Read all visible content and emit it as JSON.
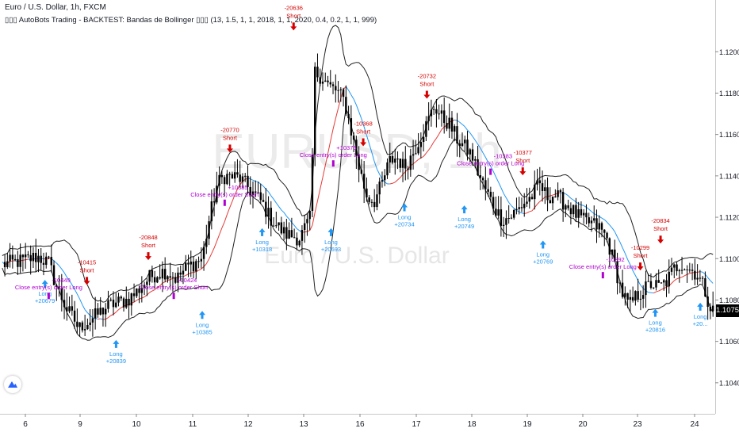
{
  "header": {
    "symbol_title": "Euro / U.S. Dollar, 1h, FXCM",
    "indicator_title": "▯▯▯ AutoBots Trading - BACKTEST: Bandas de Bollinger ▯▯▯ (13, 1.5, 1, 1, 2018, 1, 1, 2020, 0.4, 0.2, 1, 1, 999)"
  },
  "watermark": {
    "symbol": "EURUSD, 1h",
    "name": "Euro / U.S. Dollar"
  },
  "last_price": "1.10750",
  "colors": {
    "long": "#2196f3",
    "short": "#d50000",
    "close": "#b000d0",
    "basis_up": "#e53935",
    "basis_down": "#2196f3",
    "band": "#222222",
    "candle": "#000000"
  },
  "icons": {
    "logo": "tradingview-logo-icon"
  },
  "chart_data": {
    "type": "candlestick",
    "title": "Euro / U.S. Dollar, 1h, FXCM",
    "x_ticks": [
      "6",
      "9",
      "10",
      "11",
      "12",
      "13",
      "16",
      "17",
      "18",
      "19",
      "20",
      "23",
      "24"
    ],
    "y_ticks": [
      "1.12000",
      "1.11800",
      "1.11600",
      "1.11400",
      "1.11200",
      "1.11000",
      "1.10800",
      "1.10600",
      "1.10400"
    ],
    "ylim": [
      1.1025,
      1.1225
    ],
    "grid": false,
    "price_path": [
      [
        0,
        1.1097
      ],
      [
        3,
        1.1099
      ],
      [
        5,
        1.1101
      ],
      [
        6.5,
        1.1098
      ],
      [
        7.5,
        1.1087
      ],
      [
        9,
        1.1075
      ],
      [
        10,
        1.107
      ],
      [
        10.5,
        1.1066
      ],
      [
        11,
        1.1068
      ],
      [
        12,
        1.107
      ],
      [
        13,
        1.1073
      ],
      [
        14,
        1.1076
      ],
      [
        15,
        1.1078
      ],
      [
        16,
        1.1079
      ],
      [
        17,
        1.108
      ],
      [
        18,
        1.1083
      ],
      [
        19,
        1.1087
      ],
      [
        20,
        1.1091
      ],
      [
        21,
        1.1093
      ],
      [
        22,
        1.1094
      ],
      [
        23,
        1.1092
      ],
      [
        23.6,
        1.109
      ],
      [
        24,
        1.1092
      ],
      [
        25,
        1.1096
      ],
      [
        27,
        1.11
      ],
      [
        28,
        1.112
      ],
      [
        29,
        1.1136
      ],
      [
        30,
        1.114
      ],
      [
        32,
        1.1139
      ],
      [
        34,
        1.1131
      ],
      [
        35,
        1.1127
      ],
      [
        36,
        1.112
      ],
      [
        38,
        1.1112
      ],
      [
        40,
        1.111
      ],
      [
        41.5,
        1.112
      ],
      [
        42,
        1.119
      ],
      [
        43,
        1.1188
      ],
      [
        44,
        1.1183
      ],
      [
        45,
        1.1181
      ],
      [
        46,
        1.1176
      ],
      [
        47,
        1.116
      ],
      [
        48,
        1.1143
      ],
      [
        49,
        1.113
      ],
      [
        50,
        1.1128
      ],
      [
        51,
        1.1136
      ],
      [
        52,
        1.1147
      ],
      [
        53,
        1.1149
      ],
      [
        54,
        1.1144
      ],
      [
        55,
        1.115
      ],
      [
        56,
        1.1158
      ],
      [
        57,
        1.1165
      ],
      [
        58,
        1.1174
      ],
      [
        59,
        1.1168
      ],
      [
        60,
        1.1165
      ],
      [
        61,
        1.1158
      ],
      [
        62,
        1.1154
      ],
      [
        63,
        1.115
      ],
      [
        64,
        1.114
      ],
      [
        65,
        1.1132
      ],
      [
        66,
        1.1125
      ],
      [
        67,
        1.1119
      ],
      [
        68,
        1.112
      ],
      [
        69,
        1.1123
      ],
      [
        70,
        1.1127
      ],
      [
        71,
        1.113
      ],
      [
        72,
        1.1136
      ],
      [
        73,
        1.113
      ],
      [
        74,
        1.1131
      ],
      [
        75,
        1.1128
      ],
      [
        76,
        1.1125
      ],
      [
        77,
        1.1121
      ],
      [
        78,
        1.1118
      ],
      [
        79,
        1.1117
      ],
      [
        80,
        1.1115
      ],
      [
        81,
        1.111
      ],
      [
        82,
        1.1098
      ],
      [
        83,
        1.1084
      ],
      [
        84,
        1.1077
      ],
      [
        85,
        1.1082
      ],
      [
        86,
        1.1085
      ],
      [
        87,
        1.1088
      ],
      [
        88,
        1.1086
      ],
      [
        89,
        1.1089
      ],
      [
        90,
        1.1095
      ],
      [
        91,
        1.1098
      ],
      [
        92,
        1.1095
      ],
      [
        93,
        1.1093
      ],
      [
        94,
        1.1086
      ],
      [
        95,
        1.1075
      ]
    ],
    "marker_label_map": {
      "long": "Long",
      "short": "Short"
    },
    "signals": [
      {
        "type": "long",
        "x": 6.0,
        "y": 1.1092,
        "value": "+20679"
      },
      {
        "type": "close",
        "x": 6.5,
        "y": 1.1082,
        "value": "-10449",
        "text": "Close entry(s) order Long"
      },
      {
        "type": "short",
        "x": 11.6,
        "y": 1.1085,
        "value": "-10415"
      },
      {
        "type": "long",
        "x": 15.5,
        "y": 1.1063,
        "value": "+20839"
      },
      {
        "type": "short",
        "x": 19.8,
        "y": 1.1097,
        "value": "-20848"
      },
      {
        "type": "close",
        "x": 23.2,
        "y": 1.1082,
        "value": "+10424",
        "text": "Close entry(s) order Short"
      },
      {
        "type": "long",
        "x": 27.0,
        "y": 1.1077,
        "value": "+10385"
      },
      {
        "type": "short",
        "x": 30.7,
        "y": 1.1149,
        "value": "-20770"
      },
      {
        "type": "close",
        "x": 30.0,
        "y": 1.1127,
        "value": "+10385",
        "text": "Close entry(s) order Short"
      },
      {
        "type": "long",
        "x": 35.0,
        "y": 1.1117,
        "value": "+10318"
      },
      {
        "type": "short",
        "x": 39.2,
        "y": 1.1208,
        "value": "-20636"
      },
      {
        "type": "long",
        "x": 44.2,
        "y": 1.1117,
        "value": "+20693"
      },
      {
        "type": "close",
        "x": 44.5,
        "y": 1.1146,
        "value": "+10375",
        "text": "Close entry(s) order Long"
      },
      {
        "type": "short",
        "x": 48.5,
        "y": 1.1152,
        "value": "-10368"
      },
      {
        "type": "long",
        "x": 54.0,
        "y": 1.1129,
        "value": "+20734"
      },
      {
        "type": "short",
        "x": 57.0,
        "y": 1.1175,
        "value": "-20732"
      },
      {
        "type": "long",
        "x": 62.0,
        "y": 1.1128,
        "value": "+20749"
      },
      {
        "type": "close",
        "x": 65.5,
        "y": 1.1142,
        "value": "-10383",
        "text": "Close entry(s) order Long"
      },
      {
        "type": "short",
        "x": 69.8,
        "y": 1.1138,
        "value": "-10377"
      },
      {
        "type": "long",
        "x": 72.5,
        "y": 1.1111,
        "value": "+20769"
      },
      {
        "type": "close",
        "x": 80.5,
        "y": 1.1092,
        "value": "-10392",
        "text": "Close entry(s) order Long"
      },
      {
        "type": "short",
        "x": 85.5,
        "y": 1.1092,
        "value": "-10299"
      },
      {
        "type": "short",
        "x": 88.2,
        "y": 1.1105,
        "value": "-20834"
      },
      {
        "type": "long",
        "x": 87.5,
        "y": 1.1078,
        "value": "+20816"
      },
      {
        "type": "long",
        "x": 93.5,
        "y": 1.1081,
        "value": "+20..."
      }
    ]
  }
}
